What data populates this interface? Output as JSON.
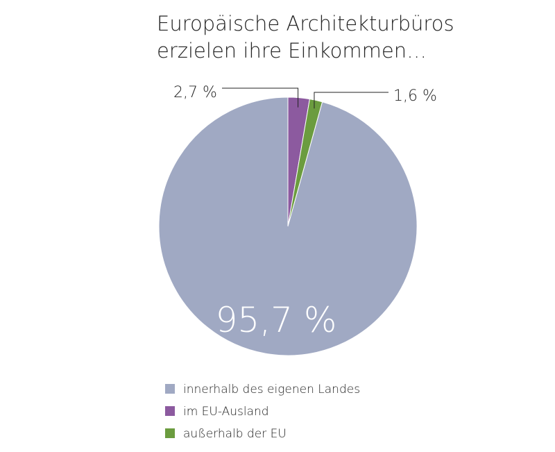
{
  "chart_data": {
    "type": "pie",
    "title": [
      "Europäische Architekturbüros",
      "erzielen ihre Einkommen…"
    ],
    "categories": [
      "innerhalb des eigenen Landes",
      "im EU-Ausland",
      "außerhalb der EU"
    ],
    "values": [
      95.7,
      2.7,
      1.6
    ],
    "value_labels": [
      "95,7 %",
      "2,7 %",
      "1,6 %"
    ],
    "colors": [
      "#a0a9c3",
      "#8c5a9f",
      "#6b9c3f"
    ]
  }
}
